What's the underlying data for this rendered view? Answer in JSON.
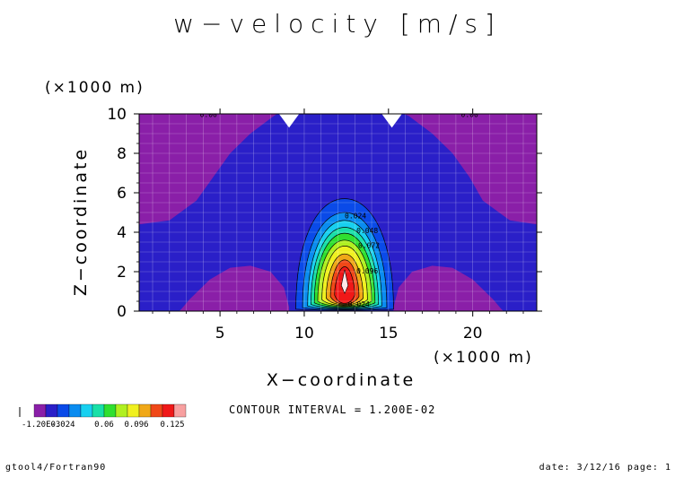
{
  "title": "w−velocity [m/s]",
  "contour_interval_text": "CONTOUR INTERVAL = 1.200E-02",
  "footer_left": "gtool4/Fortran90",
  "footer_right": "date: 3/12/16 page: 1",
  "colorbar": {
    "colors": [
      "#8a1fa8",
      "#2a1fc8",
      "#0a4ae8",
      "#0a8cf0",
      "#18d0f0",
      "#18e0a8",
      "#30e030",
      "#b0f020",
      "#f0f020",
      "#f0a818",
      "#f04818",
      "#f01818",
      "#f8a0a0"
    ],
    "tick_labels": [
      "-1.20E-3",
      "0.024",
      "0.06",
      "0.096",
      "0.125"
    ]
  },
  "chart_data": {
    "type": "heatmap",
    "title": "w−velocity [m/s]",
    "xlabel": "X−coordinate",
    "ylabel": "Z−coordinate",
    "x_unit": "(×1000 m)",
    "y_unit": "(×1000 m)",
    "xlim": [
      0.2,
      23.8
    ],
    "ylim": [
      0,
      10
    ],
    "x_ticks": [
      5,
      10,
      15,
      20
    ],
    "y_ticks": [
      0,
      2,
      4,
      6,
      8,
      10
    ],
    "grid": true,
    "contour_labels": [
      {
        "x": 3.8,
        "y": 9.85,
        "text": "0.00"
      },
      {
        "x": 19.3,
        "y": 9.85,
        "text": "0.00"
      },
      {
        "x": 12.4,
        "y": 4.7,
        "text": "0.024"
      },
      {
        "x": 13.1,
        "y": 3.95,
        "text": "0.048"
      },
      {
        "x": 13.2,
        "y": 3.2,
        "text": "0.072"
      },
      {
        "x": 13.1,
        "y": 1.9,
        "text": "0.096"
      },
      {
        "x": 12.6,
        "y": 0.22,
        "text": "0.024"
      }
    ]
  }
}
